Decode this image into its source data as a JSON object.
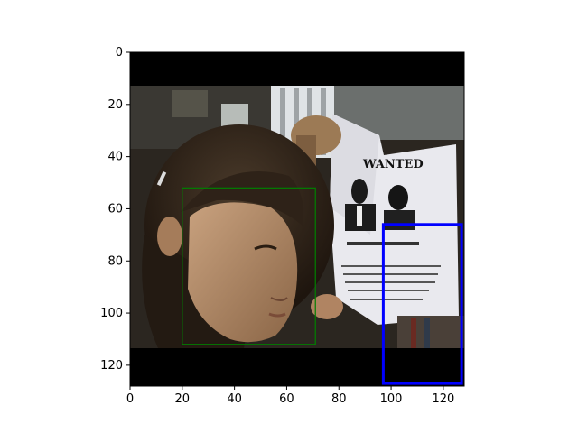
{
  "figure": {
    "image_extent": {
      "x": [
        0,
        128
      ],
      "y": [
        128,
        0
      ]
    },
    "x_ticks": [
      0,
      20,
      40,
      60,
      80,
      100,
      120
    ],
    "y_ticks": [
      0,
      20,
      40,
      60,
      80,
      100,
      120
    ],
    "image_content": {
      "description_icon": "photo-girl-holding-wanted-poster",
      "poster_heading": "WANTED"
    },
    "boxes": [
      {
        "name": "green-box",
        "color": "#008000",
        "x": [
          20,
          71
        ],
        "y": [
          52,
          112
        ]
      },
      {
        "name": "blue-box",
        "color": "#0000ff",
        "x": [
          97,
          127
        ],
        "y": [
          66,
          127
        ]
      }
    ]
  }
}
